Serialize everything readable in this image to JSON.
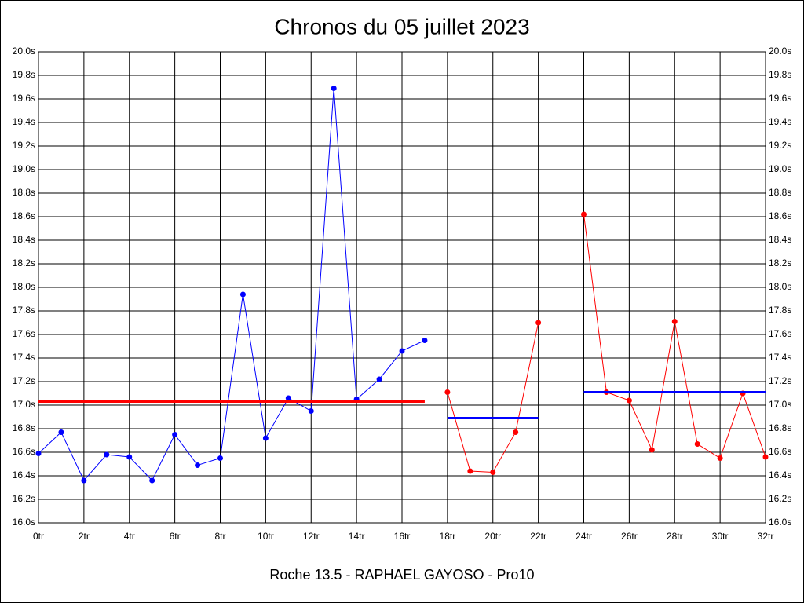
{
  "chart_data": {
    "type": "line",
    "title": "Chronos du 05 juillet 2023",
    "footer": "Roche 13.5 - RAPHAEL GAYOSO - Pro10",
    "xlim": [
      0,
      32
    ],
    "ylim": [
      16.0,
      20.0
    ],
    "grid": true,
    "xticks": [
      {
        "value": 0,
        "label": "0tr"
      },
      {
        "value": 2,
        "label": "2tr"
      },
      {
        "value": 4,
        "label": "4tr"
      },
      {
        "value": 6,
        "label": "6tr"
      },
      {
        "value": 8,
        "label": "8tr"
      },
      {
        "value": 10,
        "label": "10tr"
      },
      {
        "value": 12,
        "label": "12tr"
      },
      {
        "value": 14,
        "label": "14tr"
      },
      {
        "value": 16,
        "label": "16tr"
      },
      {
        "value": 18,
        "label": "18tr"
      },
      {
        "value": 20,
        "label": "20tr"
      },
      {
        "value": 22,
        "label": "22tr"
      },
      {
        "value": 24,
        "label": "24tr"
      },
      {
        "value": 26,
        "label": "26tr"
      },
      {
        "value": 28,
        "label": "28tr"
      },
      {
        "value": 30,
        "label": "30tr"
      },
      {
        "value": 32,
        "label": "32tr"
      }
    ],
    "yticks": [
      {
        "value": 16.0,
        "label": "16.0s"
      },
      {
        "value": 16.2,
        "label": "16.2s"
      },
      {
        "value": 16.4,
        "label": "16.4s"
      },
      {
        "value": 16.6,
        "label": "16.6s"
      },
      {
        "value": 16.8,
        "label": "16.8s"
      },
      {
        "value": 17.0,
        "label": "17.0s"
      },
      {
        "value": 17.2,
        "label": "17.2s"
      },
      {
        "value": 17.4,
        "label": "17.4s"
      },
      {
        "value": 17.6,
        "label": "17.6s"
      },
      {
        "value": 17.8,
        "label": "17.8s"
      },
      {
        "value": 18.0,
        "label": "18.0s"
      },
      {
        "value": 18.2,
        "label": "18.2s"
      },
      {
        "value": 18.4,
        "label": "18.4s"
      },
      {
        "value": 18.6,
        "label": "18.6s"
      },
      {
        "value": 18.8,
        "label": "18.8s"
      },
      {
        "value": 19.0,
        "label": "19.0s"
      },
      {
        "value": 19.2,
        "label": "19.2s"
      },
      {
        "value": 19.4,
        "label": "19.4s"
      },
      {
        "value": 19.6,
        "label": "19.6s"
      },
      {
        "value": 19.8,
        "label": "19.8s"
      },
      {
        "value": 20.0,
        "label": "20.0s"
      }
    ],
    "series": [
      {
        "color": "#0000ff",
        "markers": true,
        "width": 1,
        "x": [
          0,
          1,
          2,
          3,
          4,
          5,
          6,
          7,
          8,
          9,
          10,
          11,
          12,
          13,
          14,
          15,
          16,
          17
        ],
        "values": [
          16.59,
          16.77,
          16.36,
          16.58,
          16.56,
          16.36,
          16.75,
          16.49,
          16.55,
          17.94,
          16.72,
          17.06,
          16.95,
          19.69,
          17.05,
          17.22,
          17.46,
          17.55
        ]
      },
      {
        "color": "#ff0000",
        "markers": true,
        "width": 1,
        "x": [
          18,
          19,
          20,
          21,
          22
        ],
        "values": [
          17.11,
          16.44,
          16.43,
          16.77,
          17.7
        ]
      },
      {
        "color": "#ff0000",
        "markers": true,
        "width": 1,
        "x": [
          24,
          25,
          26,
          27,
          28,
          29,
          30,
          31,
          32
        ],
        "values": [
          18.62,
          17.11,
          17.04,
          16.62,
          17.71,
          16.67,
          16.55,
          17.1,
          16.56
        ]
      },
      {
        "color": "#ff0000",
        "markers": false,
        "width": 3,
        "x": [
          0,
          17
        ],
        "values": [
          17.03,
          17.03
        ]
      },
      {
        "color": "#0000ff",
        "markers": false,
        "width": 3,
        "x": [
          18,
          22
        ],
        "values": [
          16.89,
          16.89
        ]
      },
      {
        "color": "#0000ff",
        "markers": false,
        "width": 3,
        "x": [
          24,
          32
        ],
        "values": [
          17.11,
          17.11
        ]
      }
    ]
  }
}
